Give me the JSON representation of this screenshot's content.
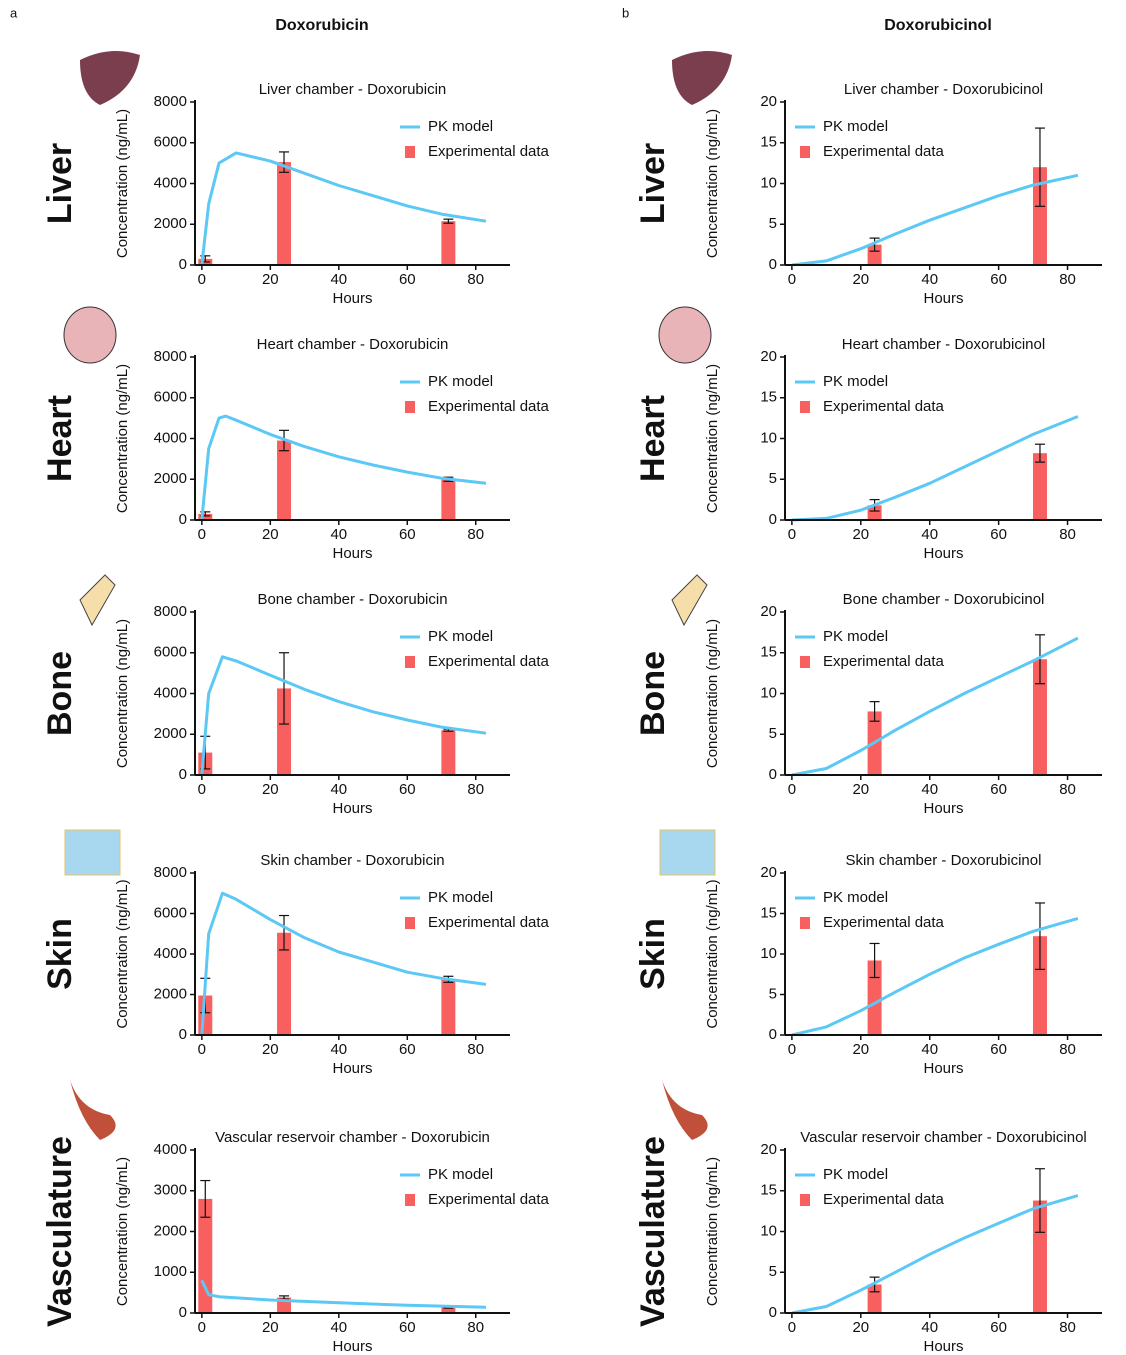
{
  "panel_labels": [
    "a",
    "b"
  ],
  "column_titles": [
    "Doxorubicin",
    "Doxorubicinol"
  ],
  "row_labels": [
    "Liver",
    "Heart",
    "Bone",
    "Skin",
    "Vasculature"
  ],
  "chart_data": [
    {
      "type": "combo",
      "title": "Liver chamber - Doxorubicin",
      "xlabel": "Hours",
      "ylabel": "Concentration (ng/mL)",
      "xlim": [
        -2,
        90
      ],
      "xticks": [
        0,
        20,
        40,
        60,
        80
      ],
      "ylim": [
        0,
        8000
      ],
      "yticks": [
        0,
        2000,
        4000,
        6000,
        8000
      ],
      "legend": "upper right",
      "series": [
        {
          "name": "PK model",
          "type": "line",
          "color": "#5bc8f5",
          "x": [
            0,
            2,
            5,
            10,
            20,
            30,
            40,
            50,
            60,
            70,
            83
          ],
          "values": [
            0,
            3000,
            5000,
            5500,
            5100,
            4500,
            3900,
            3400,
            2900,
            2500,
            2150
          ]
        },
        {
          "name": "Experimental data",
          "type": "bar",
          "color": "#f86060",
          "x": [
            1,
            24,
            72
          ],
          "values": [
            300,
            5050,
            2150
          ],
          "errors": [
            150,
            500,
            100
          ]
        }
      ]
    },
    {
      "type": "combo",
      "title": "Heart chamber - Doxorubicin",
      "xlabel": "Hours",
      "ylabel": "Concentration (ng/mL)",
      "xlim": [
        -2,
        90
      ],
      "xticks": [
        0,
        20,
        40,
        60,
        80
      ],
      "ylim": [
        0,
        8000
      ],
      "yticks": [
        0,
        2000,
        4000,
        6000,
        8000
      ],
      "legend": "upper right",
      "series": [
        {
          "name": "PK model",
          "type": "line",
          "color": "#5bc8f5",
          "x": [
            0,
            2,
            5,
            7,
            10,
            20,
            30,
            40,
            50,
            60,
            70,
            83
          ],
          "values": [
            0,
            3500,
            5000,
            5100,
            4900,
            4200,
            3600,
            3100,
            2700,
            2350,
            2050,
            1800
          ]
        },
        {
          "name": "Experimental data",
          "type": "bar",
          "color": "#f86060",
          "x": [
            1,
            24,
            72
          ],
          "values": [
            300,
            3900,
            2000
          ],
          "errors": [
            100,
            500,
            100
          ]
        }
      ]
    },
    {
      "type": "combo",
      "title": "Bone chamber - Doxorubicin",
      "xlabel": "Hours",
      "ylabel": "Concentration (ng/mL)",
      "xlim": [
        -2,
        90
      ],
      "xticks": [
        0,
        20,
        40,
        60,
        80
      ],
      "ylim": [
        0,
        8000
      ],
      "yticks": [
        0,
        2000,
        4000,
        6000,
        8000
      ],
      "legend": "upper right",
      "series": [
        {
          "name": "PK model",
          "type": "line",
          "color": "#5bc8f5",
          "x": [
            0,
            2,
            6,
            10,
            20,
            30,
            40,
            50,
            60,
            70,
            83
          ],
          "values": [
            0,
            4000,
            5800,
            5600,
            4900,
            4200,
            3600,
            3100,
            2700,
            2350,
            2050
          ]
        },
        {
          "name": "Experimental data",
          "type": "bar",
          "color": "#f86060",
          "x": [
            1,
            24,
            72
          ],
          "values": [
            1100,
            4250,
            2200
          ],
          "errors": [
            800,
            1750,
            50
          ]
        }
      ]
    },
    {
      "type": "combo",
      "title": "Skin chamber - Doxorubicin",
      "xlabel": "Hours",
      "ylabel": "Concentration (ng/mL)",
      "xlim": [
        -2,
        90
      ],
      "xticks": [
        0,
        20,
        40,
        60,
        80
      ],
      "ylim": [
        0,
        8000
      ],
      "yticks": [
        0,
        2000,
        4000,
        6000,
        8000
      ],
      "legend": "upper right",
      "series": [
        {
          "name": "PK model",
          "type": "line",
          "color": "#5bc8f5",
          "x": [
            0,
            2,
            6,
            10,
            20,
            30,
            40,
            50,
            60,
            70,
            83
          ],
          "values": [
            0,
            5000,
            7000,
            6700,
            5700,
            4800,
            4100,
            3600,
            3100,
            2800,
            2500
          ]
        },
        {
          "name": "Experimental data",
          "type": "bar",
          "color": "#f86060",
          "x": [
            1,
            24,
            72
          ],
          "values": [
            1950,
            5050,
            2750
          ],
          "errors": [
            850,
            850,
            150
          ]
        }
      ]
    },
    {
      "type": "combo",
      "title": "Vascular reservoir chamber - Doxorubicin",
      "xlabel": "Hours",
      "ylabel": "Concentration (ng/mL)",
      "xlim": [
        -2,
        90
      ],
      "xticks": [
        0,
        20,
        40,
        60,
        80
      ],
      "ylim": [
        0,
        4000
      ],
      "yticks": [
        0,
        1000,
        2000,
        3000,
        4000
      ],
      "legend": "upper right",
      "series": [
        {
          "name": "PK model",
          "type": "line",
          "color": "#5bc8f5",
          "x": [
            0,
            2,
            5,
            20,
            40,
            60,
            83
          ],
          "values": [
            800,
            450,
            400,
            320,
            250,
            190,
            140
          ]
        },
        {
          "name": "Experimental data",
          "type": "bar",
          "color": "#f86060",
          "x": [
            1,
            24,
            72
          ],
          "values": [
            2800,
            380,
            150
          ],
          "errors": [
            450,
            40,
            30
          ]
        }
      ]
    },
    {
      "type": "combo",
      "title": "Liver chamber - Doxorubicinol",
      "xlabel": "Hours",
      "ylabel": "Concentration (ng/mL)",
      "xlim": [
        -2,
        90
      ],
      "xticks": [
        0,
        20,
        40,
        60,
        80
      ],
      "ylim": [
        0,
        20
      ],
      "yticks": [
        0,
        5,
        10,
        15,
        20
      ],
      "legend": "upper left",
      "series": [
        {
          "name": "PK model",
          "type": "line",
          "color": "#5bc8f5",
          "x": [
            0,
            10,
            20,
            30,
            40,
            50,
            60,
            70,
            83
          ],
          "values": [
            0,
            0.5,
            2,
            3.8,
            5.5,
            7,
            8.5,
            9.8,
            11
          ]
        },
        {
          "name": "Experimental data",
          "type": "bar",
          "color": "#f86060",
          "x": [
            24,
            72
          ],
          "values": [
            2.5,
            12
          ],
          "errors": [
            0.8,
            4.8
          ]
        }
      ]
    },
    {
      "type": "combo",
      "title": "Heart chamber - Doxorubicinol",
      "xlabel": "Hours",
      "ylabel": "Concentration (ng/mL)",
      "xlim": [
        -2,
        90
      ],
      "xticks": [
        0,
        20,
        40,
        60,
        80
      ],
      "ylim": [
        0,
        20
      ],
      "yticks": [
        0,
        5,
        10,
        15,
        20
      ],
      "legend": "upper left",
      "series": [
        {
          "name": "PK model",
          "type": "line",
          "color": "#5bc8f5",
          "x": [
            0,
            10,
            20,
            30,
            40,
            50,
            60,
            70,
            83
          ],
          "values": [
            0,
            0.2,
            1.2,
            2.8,
            4.5,
            6.5,
            8.5,
            10.5,
            12.7
          ]
        },
        {
          "name": "Experimental data",
          "type": "bar",
          "color": "#f86060",
          "x": [
            24,
            72
          ],
          "values": [
            1.8,
            8.2
          ],
          "errors": [
            0.7,
            1.1
          ]
        }
      ]
    },
    {
      "type": "combo",
      "title": "Bone chamber - Doxorubicinol",
      "xlabel": "Hours",
      "ylabel": "Concentration (ng/mL)",
      "xlim": [
        -2,
        90
      ],
      "xticks": [
        0,
        20,
        40,
        60,
        80
      ],
      "ylim": [
        0,
        20
      ],
      "yticks": [
        0,
        5,
        10,
        15,
        20
      ],
      "legend": "upper left",
      "series": [
        {
          "name": "PK model",
          "type": "line",
          "color": "#5bc8f5",
          "x": [
            0,
            10,
            20,
            30,
            40,
            50,
            60,
            70,
            83
          ],
          "values": [
            0,
            0.8,
            3,
            5.5,
            7.8,
            10,
            12,
            14,
            16.8
          ]
        },
        {
          "name": "Experimental data",
          "type": "bar",
          "color": "#f86060",
          "x": [
            24,
            72
          ],
          "values": [
            7.8,
            14.2
          ],
          "errors": [
            1.2,
            3
          ]
        }
      ]
    },
    {
      "type": "combo",
      "title": "Skin chamber - Doxorubicinol",
      "xlabel": "Hours",
      "ylabel": "Concentration (ng/mL)",
      "xlim": [
        -2,
        90
      ],
      "xticks": [
        0,
        20,
        40,
        60,
        80
      ],
      "ylim": [
        0,
        20
      ],
      "yticks": [
        0,
        5,
        10,
        15,
        20
      ],
      "legend": "upper left",
      "series": [
        {
          "name": "PK model",
          "type": "line",
          "color": "#5bc8f5",
          "x": [
            0,
            10,
            20,
            30,
            40,
            50,
            60,
            70,
            83
          ],
          "values": [
            0,
            1,
            3,
            5.3,
            7.5,
            9.5,
            11.2,
            12.8,
            14.4
          ]
        },
        {
          "name": "Experimental data",
          "type": "bar",
          "color": "#f86060",
          "x": [
            24,
            72
          ],
          "values": [
            9.2,
            12.2
          ],
          "errors": [
            2.1,
            4.1
          ]
        }
      ]
    },
    {
      "type": "combo",
      "title": "Vascular reservoir chamber - Doxorubicinol",
      "xlabel": "Hours",
      "ylabel": "Concentration (ng/mL)",
      "xlim": [
        -2,
        90
      ],
      "xticks": [
        0,
        20,
        40,
        60,
        80
      ],
      "ylim": [
        0,
        20
      ],
      "yticks": [
        0,
        5,
        10,
        15,
        20
      ],
      "legend": "upper left",
      "series": [
        {
          "name": "PK model",
          "type": "line",
          "color": "#5bc8f5",
          "x": [
            0,
            10,
            20,
            30,
            40,
            50,
            60,
            70,
            83
          ],
          "values": [
            0,
            0.8,
            2.8,
            5,
            7.2,
            9.2,
            11,
            12.8,
            14.4
          ]
        },
        {
          "name": "Experimental data",
          "type": "bar",
          "color": "#f86060",
          "x": [
            24,
            72
          ],
          "values": [
            3.5,
            13.8
          ],
          "errors": [
            0.9,
            3.9
          ]
        }
      ]
    }
  ]
}
